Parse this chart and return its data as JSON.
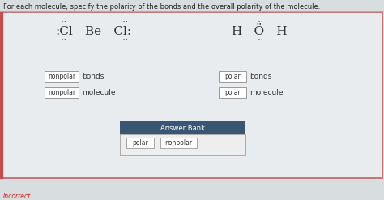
{
  "title": "For each molecule, specify the polarity of the bonds and the overall polarity of the molecule.",
  "page_bg": "#d8dde0",
  "inner_bg": "#e8ecee",
  "box_bg": "#ffffff",
  "box_border": "#999999",
  "text_color": "#333333",
  "dots_color": "#333333",
  "mol1_label1": "nonpolar",
  "mol1_label2": "nonpolar",
  "mol2_label1": "polar",
  "mol2_label2": "polar",
  "text_bonds": "bonds",
  "text_molecule": "molecule",
  "answer_bank_title": "Answer Bank",
  "answer_bank_color": "#3b5673",
  "answer1": "polar",
  "answer2": "nonpolar",
  "incorrect_text": "Incorrect",
  "incorrect_color": "#cc2222",
  "border_color": "#b04040"
}
